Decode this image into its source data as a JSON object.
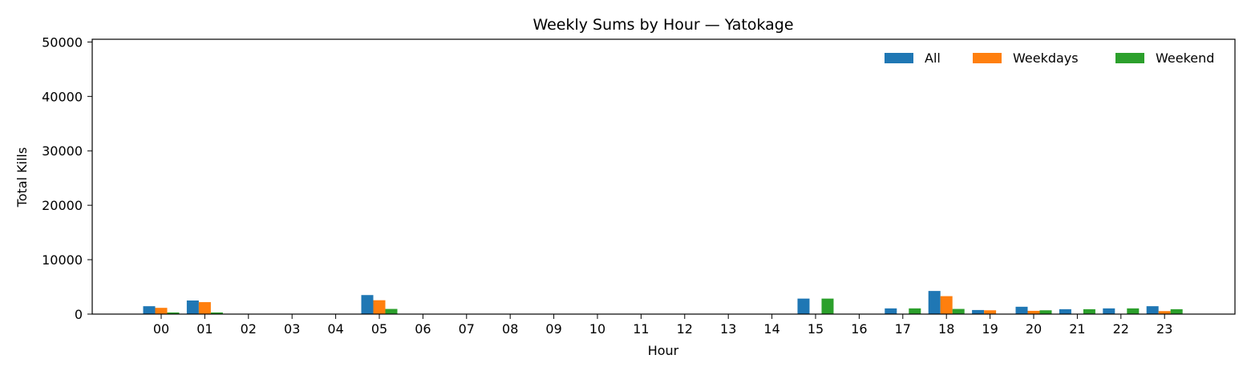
{
  "chart_data": {
    "type": "bar",
    "title": "Weekly Sums by Hour — Yatokage",
    "xlabel": "Hour",
    "ylabel": "Total Kills",
    "ylim": [
      0,
      50500
    ],
    "yticks": [
      0,
      10000,
      20000,
      30000,
      40000,
      50000
    ],
    "grid": false,
    "legend": "top-right",
    "categories": [
      "00",
      "01",
      "02",
      "03",
      "04",
      "05",
      "06",
      "07",
      "08",
      "09",
      "10",
      "11",
      "12",
      "13",
      "14",
      "15",
      "16",
      "17",
      "18",
      "19",
      "20",
      "21",
      "22",
      "23"
    ],
    "series": [
      {
        "name": "All",
        "color": "#1f77b4",
        "values": [
          1450,
          2500,
          0,
          0,
          0,
          3500,
          0,
          0,
          0,
          0,
          0,
          0,
          0,
          0,
          0,
          2850,
          0,
          1050,
          4250,
          750,
          1350,
          900,
          1050,
          1450
        ]
      },
      {
        "name": "Weekdays",
        "color": "#ff7f0e",
        "values": [
          1150,
          2200,
          0,
          0,
          0,
          2550,
          0,
          0,
          0,
          0,
          0,
          0,
          0,
          0,
          0,
          0,
          0,
          0,
          3300,
          700,
          600,
          0,
          0,
          550
        ]
      },
      {
        "name": "Weekend",
        "color": "#2ca02c",
        "values": [
          300,
          300,
          0,
          0,
          0,
          950,
          0,
          0,
          0,
          0,
          0,
          0,
          0,
          0,
          0,
          2850,
          0,
          1050,
          950,
          0,
          700,
          900,
          1050,
          900
        ]
      }
    ]
  }
}
